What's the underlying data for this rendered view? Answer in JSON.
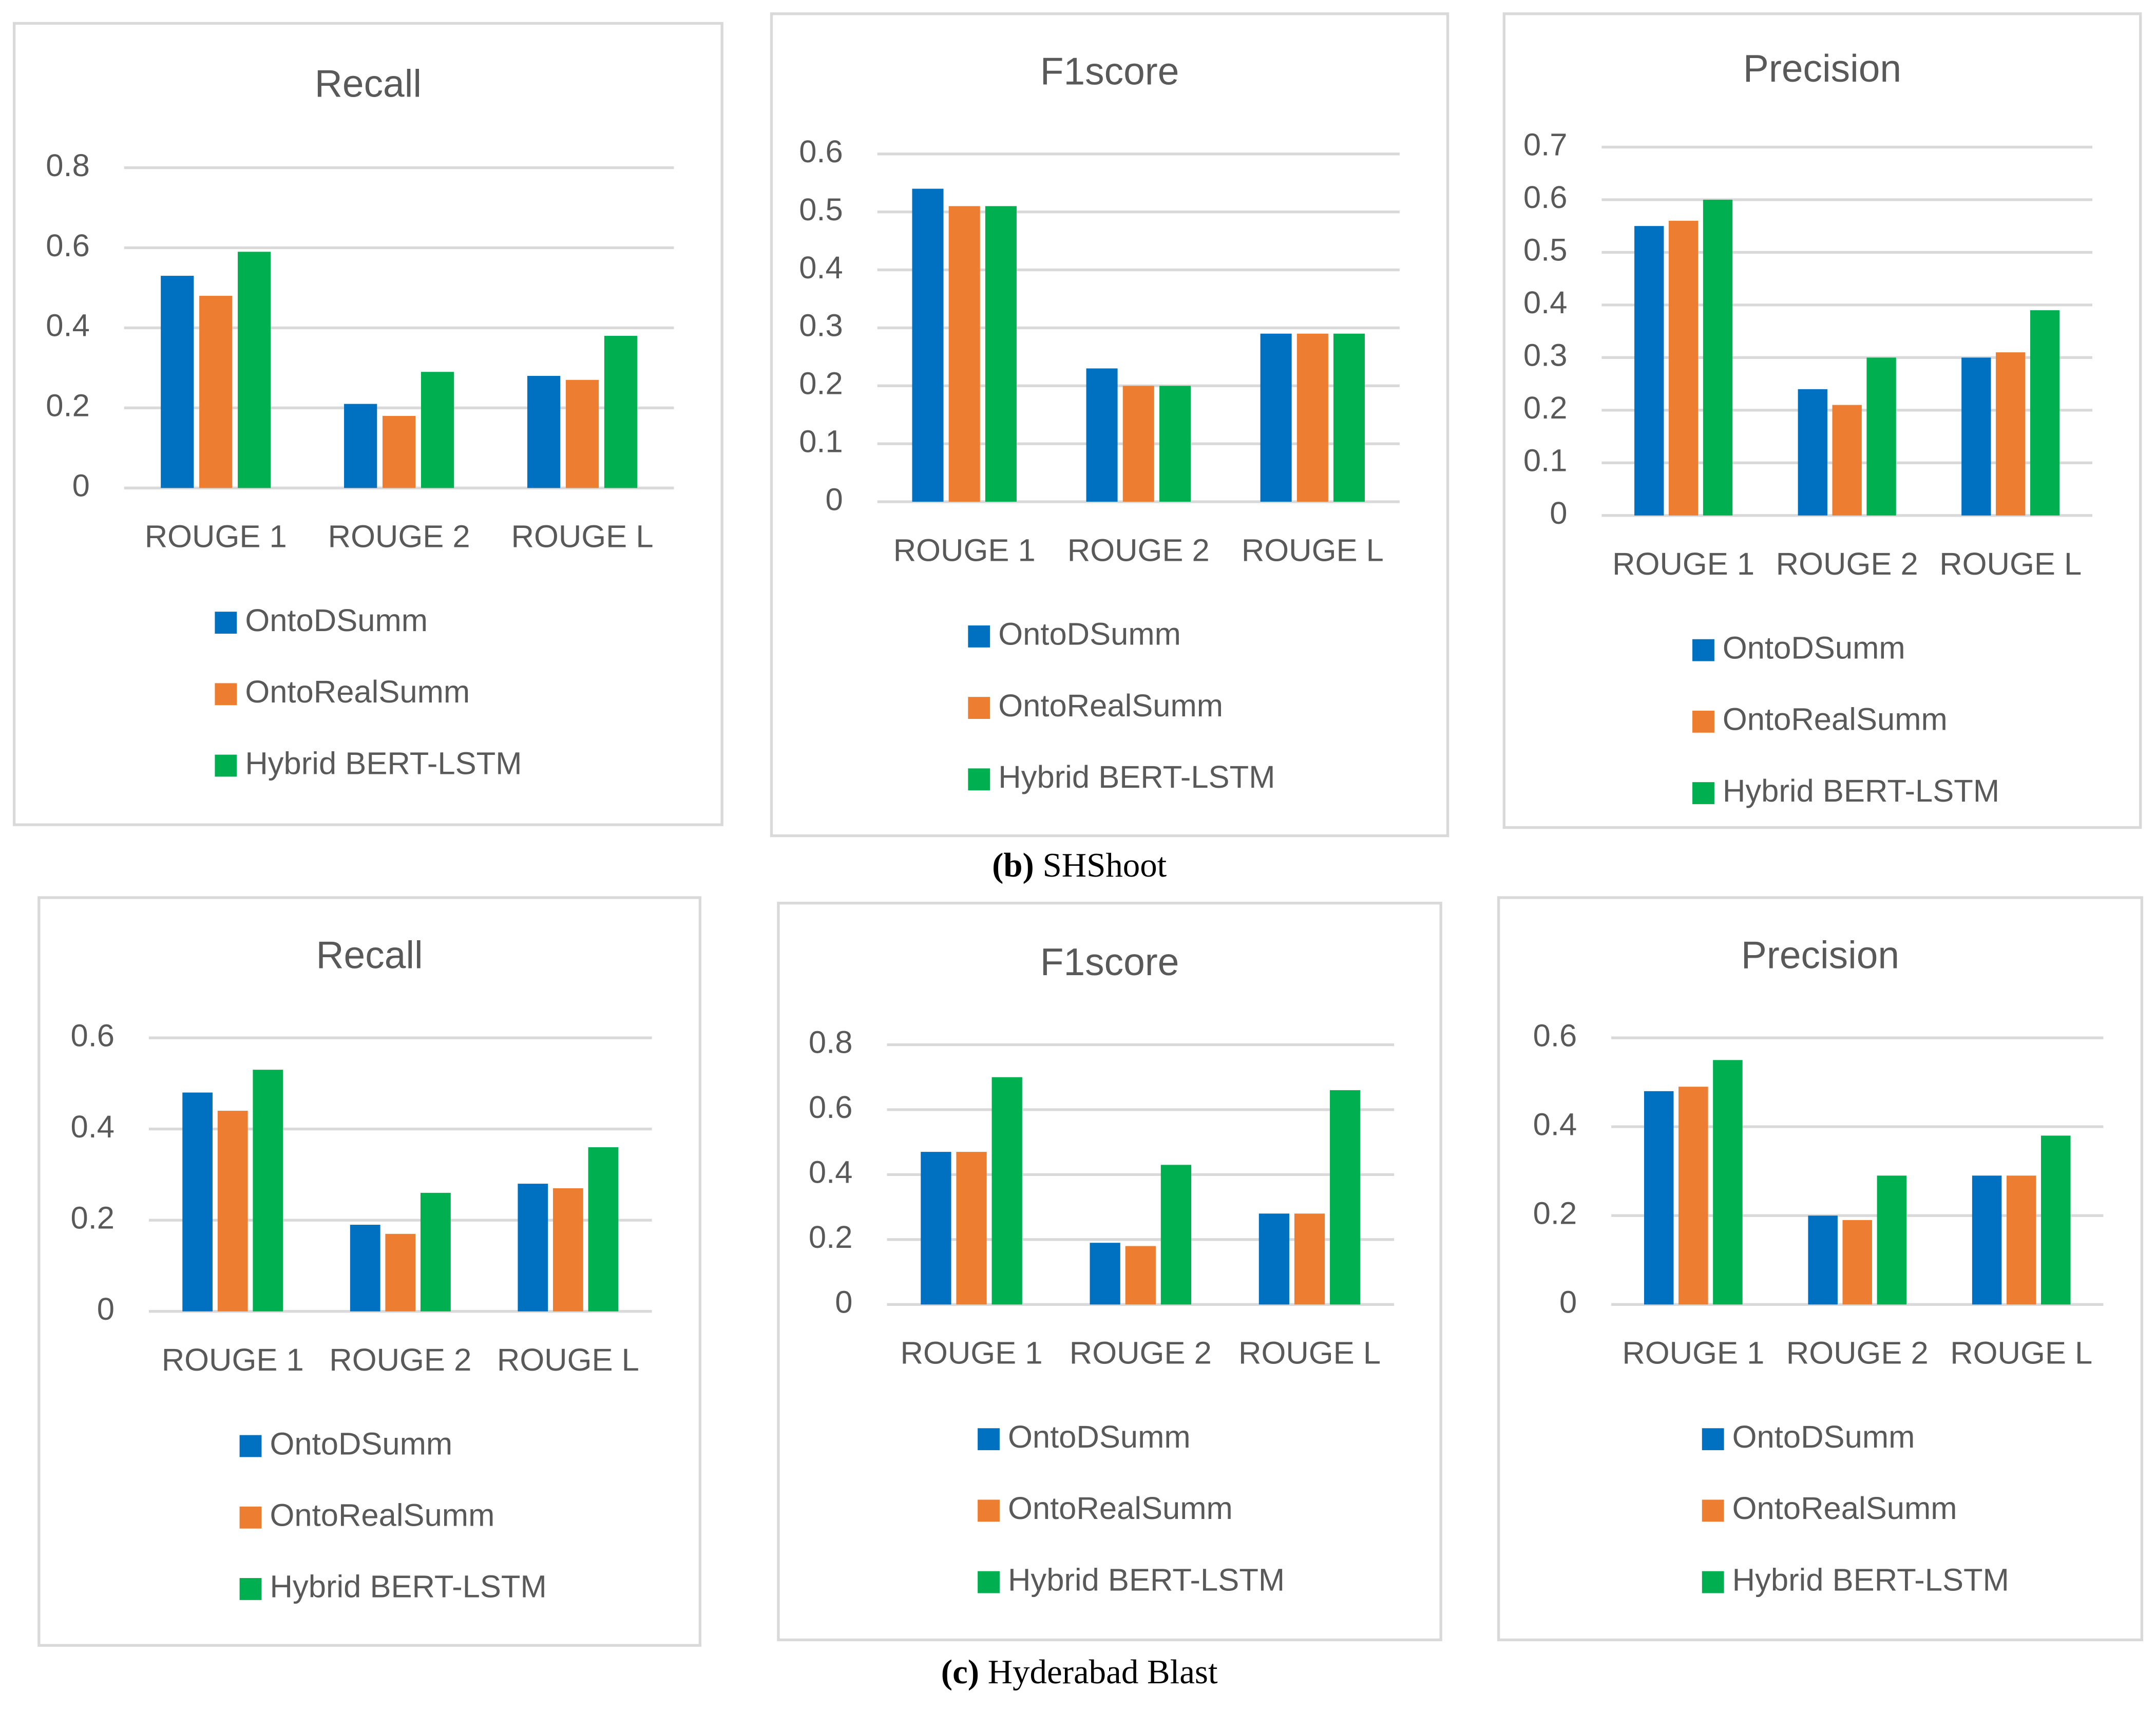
{
  "chart_data": [
    {
      "type": "bar",
      "title": "Recall",
      "categories": [
        "ROUGE 1",
        "ROUGE 2",
        "ROUGE L"
      ],
      "ylim": [
        0,
        0.8
      ],
      "yticks": [
        0,
        0.2,
        0.4,
        0.6,
        0.8
      ],
      "grid": true,
      "series": [
        {
          "name": "OntoDSumm",
          "color": "#0070c0",
          "values": [
            0.53,
            0.21,
            0.28
          ]
        },
        {
          "name": "OntoRealSumm",
          "color": "#ed7d31",
          "values": [
            0.48,
            0.18,
            0.27
          ]
        },
        {
          "name": "Hybrid BERT-LSTM",
          "color": "#00b050",
          "values": [
            0.59,
            0.29,
            0.38
          ]
        }
      ]
    },
    {
      "type": "bar",
      "title": "F1score",
      "categories": [
        "ROUGE 1",
        "ROUGE 2",
        "ROUGE L"
      ],
      "ylim": [
        0,
        0.6
      ],
      "yticks": [
        0,
        0.1,
        0.2,
        0.3,
        0.4,
        0.5,
        0.6
      ],
      "grid": true,
      "series": [
        {
          "name": "OntoDSumm",
          "color": "#0070c0",
          "values": [
            0.54,
            0.23,
            0.29
          ]
        },
        {
          "name": "OntoRealSumm",
          "color": "#ed7d31",
          "values": [
            0.51,
            0.2,
            0.29
          ]
        },
        {
          "name": "Hybrid BERT-LSTM",
          "color": "#00b050",
          "values": [
            0.51,
            0.2,
            0.29
          ]
        }
      ]
    },
    {
      "type": "bar",
      "title": "Precision",
      "categories": [
        "ROUGE 1",
        "ROUGE 2",
        "ROUGE L"
      ],
      "ylim": [
        0,
        0.7
      ],
      "yticks": [
        0,
        0.1,
        0.2,
        0.3,
        0.4,
        0.5,
        0.6,
        0.7
      ],
      "grid": true,
      "series": [
        {
          "name": "OntoDSumm",
          "color": "#0070c0",
          "values": [
            0.55,
            0.24,
            0.3
          ]
        },
        {
          "name": "OntoRealSumm",
          "color": "#ed7d31",
          "values": [
            0.56,
            0.21,
            0.31
          ]
        },
        {
          "name": "Hybrid BERT-LSTM",
          "color": "#00b050",
          "values": [
            0.6,
            0.3,
            0.39
          ]
        }
      ]
    },
    {
      "type": "bar",
      "title": "Recall",
      "categories": [
        "ROUGE 1",
        "ROUGE 2",
        "ROUGE L"
      ],
      "ylim": [
        0,
        0.6
      ],
      "yticks": [
        0,
        0.2,
        0.4,
        0.6
      ],
      "grid": true,
      "series": [
        {
          "name": "OntoDSumm",
          "color": "#0070c0",
          "values": [
            0.48,
            0.19,
            0.28
          ]
        },
        {
          "name": "OntoRealSumm",
          "color": "#ed7d31",
          "values": [
            0.44,
            0.17,
            0.27
          ]
        },
        {
          "name": "Hybrid BERT-LSTM",
          "color": "#00b050",
          "values": [
            0.53,
            0.26,
            0.36
          ]
        }
      ]
    },
    {
      "type": "bar",
      "title": "F1score",
      "categories": [
        "ROUGE 1",
        "ROUGE 2",
        "ROUGE L"
      ],
      "ylim": [
        0,
        0.8
      ],
      "yticks": [
        0,
        0.2,
        0.4,
        0.6,
        0.8
      ],
      "grid": true,
      "series": [
        {
          "name": "OntoDSumm",
          "color": "#0070c0",
          "values": [
            0.47,
            0.19,
            0.28
          ]
        },
        {
          "name": "OntoRealSumm",
          "color": "#ed7d31",
          "values": [
            0.47,
            0.18,
            0.28
          ]
        },
        {
          "name": "Hybrid BERT-LSTM",
          "color": "#00b050",
          "values": [
            0.7,
            0.43,
            0.66
          ]
        }
      ]
    },
    {
      "type": "bar",
      "title": "Precision",
      "categories": [
        "ROUGE 1",
        "ROUGE 2",
        "ROUGE L"
      ],
      "ylim": [
        0,
        0.6
      ],
      "yticks": [
        0,
        0.2,
        0.4,
        0.6
      ],
      "grid": true,
      "series": [
        {
          "name": "OntoDSumm",
          "color": "#0070c0",
          "values": [
            0.48,
            0.2,
            0.29
          ]
        },
        {
          "name": "OntoRealSumm",
          "color": "#ed7d31",
          "values": [
            0.49,
            0.19,
            0.29
          ]
        },
        {
          "name": "Hybrid BERT-LSTM",
          "color": "#00b050",
          "values": [
            0.55,
            0.29,
            0.38
          ]
        }
      ]
    }
  ],
  "captions": [
    {
      "label": "(b)",
      "text": "SHShoot"
    },
    {
      "label": "(c)",
      "text": "Hyderabad Blast"
    }
  ]
}
